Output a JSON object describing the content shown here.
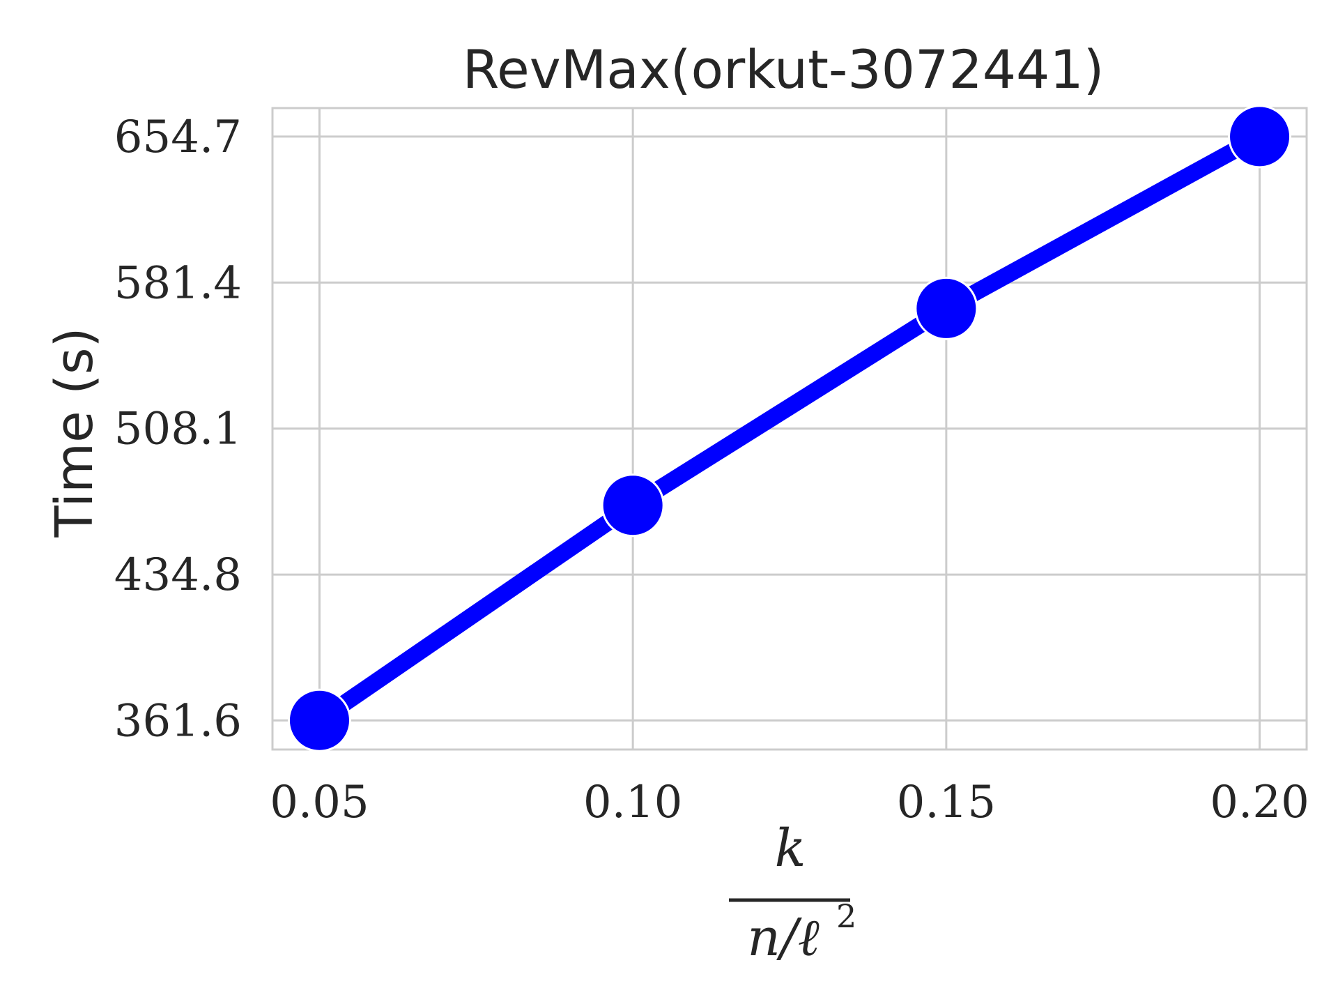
{
  "chart_data": {
    "type": "line",
    "title": "RevMax(orkut-3072441)",
    "ylabel": "Time (s)",
    "xlabel": {
      "numerator": "k",
      "denominator": "n/ℓ",
      "exponent": "2"
    },
    "x": [
      0.05,
      0.1,
      0.15,
      0.2
    ],
    "x_tick_labels": [
      "0.05",
      "0.10",
      "0.15",
      "0.20"
    ],
    "y_ticks": [
      361.6,
      434.8,
      508.1,
      581.4,
      654.7
    ],
    "y_tick_labels": [
      "361.6",
      "434.8",
      "508.1",
      "581.4",
      "654.7"
    ],
    "xlim": [
      0.0425,
      0.2075
    ],
    "ylim": [
      347,
      669
    ],
    "grid": true,
    "series": [
      {
        "values": [
          361.6,
          469.6,
          568.4,
          654.7
        ],
        "color": "#0000ff"
      }
    ]
  }
}
